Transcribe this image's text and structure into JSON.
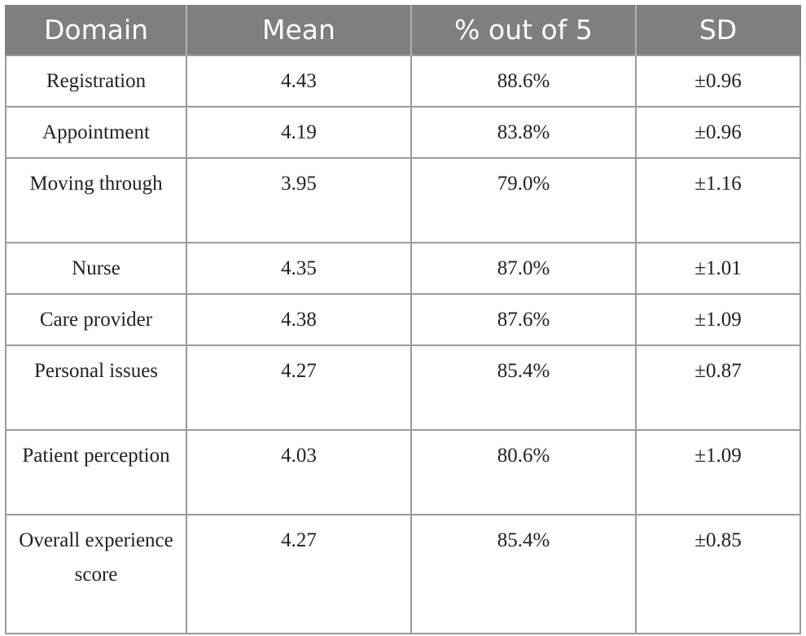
{
  "table": {
    "headers": [
      "Domain",
      "Mean",
      "% out of 5",
      "SD"
    ],
    "rows": [
      {
        "domain": "Registration",
        "mean": "4.43",
        "pct": "88.6%",
        "sd": "±0.96"
      },
      {
        "domain": "Appointment",
        "mean": "4.19",
        "pct": "83.8%",
        "sd": "±0.96"
      },
      {
        "domain": "Moving through",
        "mean": "3.95",
        "pct": "79.0%",
        "sd": "±1.16"
      },
      {
        "domain": "Nurse",
        "mean": "4.35",
        "pct": "87.0%",
        "sd": "±1.01"
      },
      {
        "domain": "Care provider",
        "mean": "4.38",
        "pct": "87.6%",
        "sd": "±1.09"
      },
      {
        "domain": "Personal issues",
        "mean": "4.27",
        "pct": "85.4%",
        "sd": "±0.87"
      },
      {
        "domain": "Patient perception",
        "mean": "4.03",
        "pct": "80.6%",
        "sd": "±1.09"
      },
      {
        "domain": "Overall experience score",
        "mean": "4.27",
        "pct": "85.4%",
        "sd": "±0.85"
      }
    ]
  },
  "colors": {
    "header_bg": "#7f7f7f",
    "header_text": "#ffffff",
    "grid": "#9a9a9a",
    "body_text": "#222222"
  }
}
